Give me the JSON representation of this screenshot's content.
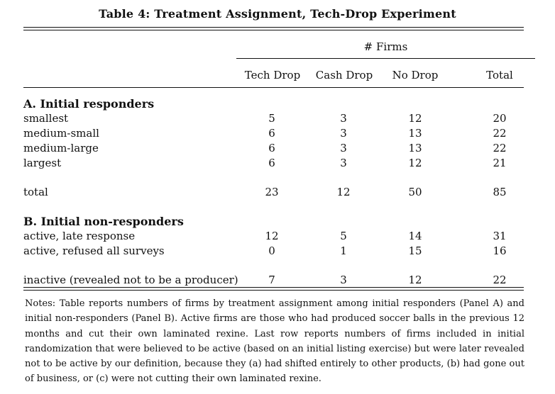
{
  "title": "Table 4: Treatment Assignment, Tech-Drop Experiment",
  "group_header": "# Firms",
  "columns": [
    "Tech Drop",
    "Cash Drop",
    "No Drop",
    "Total"
  ],
  "panelA": {
    "title": "A. Initial responders",
    "rows": [
      {
        "label": "smallest",
        "values": [
          "5",
          "3",
          "12",
          "20"
        ]
      },
      {
        "label": "medium-small",
        "values": [
          "6",
          "3",
          "13",
          "22"
        ]
      },
      {
        "label": "medium-large",
        "values": [
          "6",
          "3",
          "13",
          "22"
        ]
      },
      {
        "label": "largest",
        "values": [
          "6",
          "3",
          "12",
          "21"
        ]
      }
    ],
    "total": {
      "label": "total",
      "values": [
        "23",
        "12",
        "50",
        "85"
      ]
    }
  },
  "panelB": {
    "title": "B. Initial non-responders",
    "rows": [
      {
        "label": "active, late response",
        "values": [
          "12",
          "5",
          "14",
          "31"
        ]
      },
      {
        "label": "active, refused all surveys",
        "values": [
          "0",
          "1",
          "15",
          "16"
        ]
      }
    ],
    "inactive": {
      "label": "inactive (revealed not to be a producer)",
      "values": [
        "7",
        "3",
        "12",
        "22"
      ]
    }
  },
  "notes": "Notes: Table reports numbers of firms by treatment assignment among initial responders (Panel A) and initial non-responders (Panel B). Active firms are those who had produced soccer balls in the previous 12 months and cut their own laminated rexine. Last row reports numbers of firms included in initial randomization that were believed to be active (based on an initial listing exercise) but were later revealed not to be active by our definition, because they (a) had shifted entirely to other products, (b) had gone out of business, or (c) were not cutting their own laminated rexine."
}
